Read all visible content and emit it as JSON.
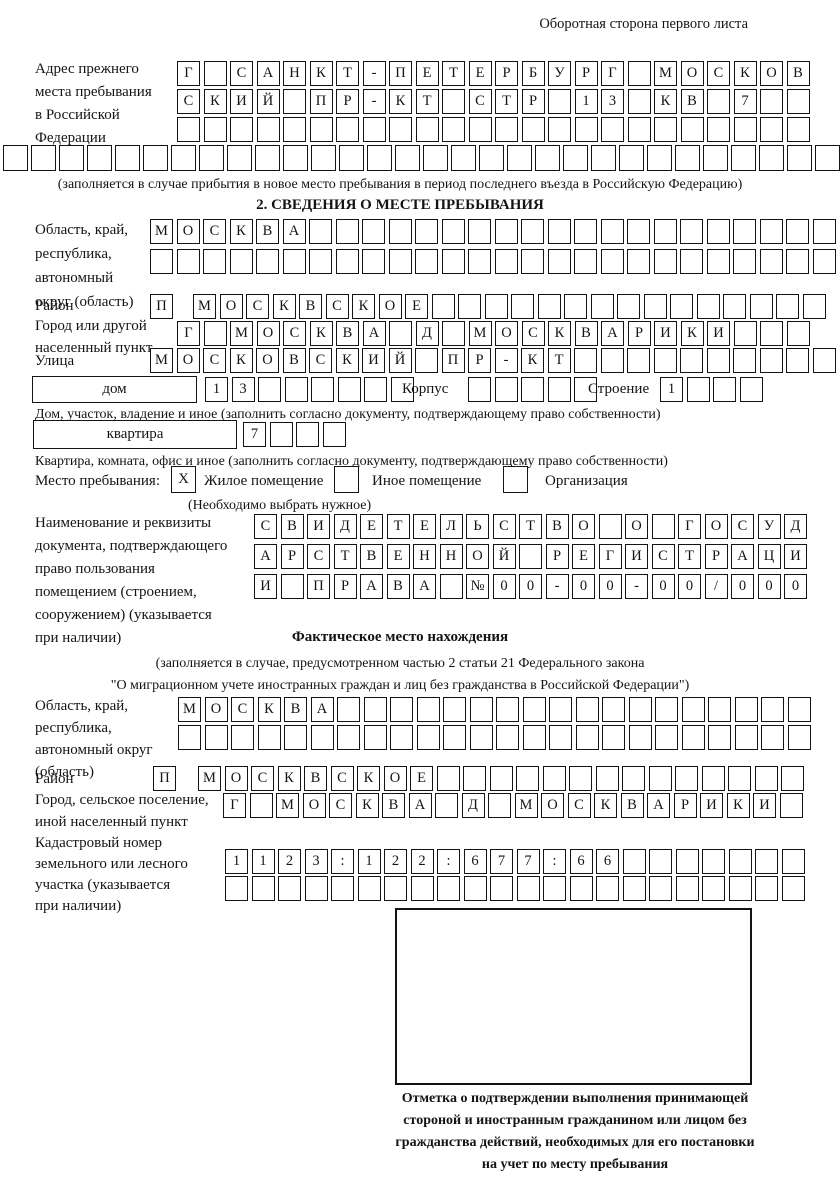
{
  "page_header": "Оборотная сторона первого листа",
  "prev_address": {
    "label_lines": [
      "Адрес прежнего",
      "места пребывания",
      "в Российской",
      "Федерации"
    ],
    "row1": "Г САНКТ-ПЕТЕРБУРГ МОСКОВ",
    "row2": "СКИЙ ПР-КТ СТР 13 КВ 7",
    "row3": "",
    "overflow_row": "",
    "caption": "(заполняется в случае прибытия в новое место пребывания в период последнего въезда в Российскую Федерацию)"
  },
  "section2": {
    "title": "2. СВЕДЕНИЯ О МЕСТЕ ПРЕБЫВАНИЯ",
    "region_label_lines": [
      "Область, край,",
      "республика,",
      "автономный",
      "округ (область)"
    ],
    "region_row1": "МОСКВА",
    "region_row2": "",
    "district_label": "Район",
    "district_prefix": "П",
    "district_row": "МОСКВСКОЕ",
    "city_label_lines": [
      "Город или другой",
      "населенный пункт"
    ],
    "city_row": "Г МОСКВА Д МОСКВАРИКИ",
    "street_label": "Улица",
    "street_row": "МОСКОВСКИЙ ПР-КТ",
    "house_box_label": "дом",
    "house_row": "13",
    "korpus_label": "Корпус",
    "korpus_row": "",
    "stroenie_label": "Строение",
    "stroenie_row": "1",
    "house_caption": "Дом, участок, владение и иное (заполнить согласно документу, подтверждающему право собственности)",
    "apartment_box_label": "квартира",
    "apartment_row": "7",
    "apartment_caption": "Квартира, комната, офис и иное (заполнить согласно документу, подтверждающему право собственности)",
    "stay_label": "Место пребывания:",
    "stay_opt1_mark": "X",
    "stay_opt1_label": "Жилое помещение",
    "stay_opt2_mark": "",
    "stay_opt2_label": "Иное помещение",
    "stay_opt3_mark": "",
    "stay_opt3_label": "Организация",
    "stay_note": "(Необходимо выбрать нужное)",
    "doc_label_lines": [
      "Наименование и реквизиты",
      "документа, подтверждающего",
      "право пользования",
      "помещением (строением,",
      "сооружением) (указывается",
      "при наличии)"
    ],
    "doc_row1": "СВИДЕТЕЛЬСТВО О ГОСУД",
    "doc_row2": "АРСТВЕННОЙ РЕГИСТРАЦИ",
    "doc_row3": "И ПРАВА №00-00-00/000"
  },
  "actual": {
    "title": "Фактическое место нахождения",
    "caption_line1": "(заполняется в случае, предусмотренном частью 2 статьи 21 Федерального закона",
    "caption_line2": "\"О миграционном учете иностранных граждан и лиц без гражданства в Российской Федерации\")",
    "region_label_lines": [
      "Область, край,",
      "республика,",
      "автономный округ",
      "(область)"
    ],
    "region_row1": "МОСКВА",
    "region_row2": "",
    "district_label": "Район",
    "district_prefix": "П",
    "district_row": "МОСКВСКОЕ",
    "city_label_lines": [
      "Город, сельское поселение,",
      "иной населенный пункт"
    ],
    "city_row": "Г МОСКВА Д МОСКВАРИКИ",
    "cadastral_label_lines": [
      "Кадастровый номер",
      "земельного или лесного",
      "участка (указывается",
      "при наличии)"
    ],
    "cadastral_row1": "1123:122:677:66",
    "cadastral_row2": "",
    "stamp_caption_lines": [
      "Отметка о подтверждении выполнения принимающей",
      "стороной и иностранным гражданином или лицом без",
      "гражданства действий, необходимых для его постановки",
      "на учет по месту пребывания"
    ]
  }
}
